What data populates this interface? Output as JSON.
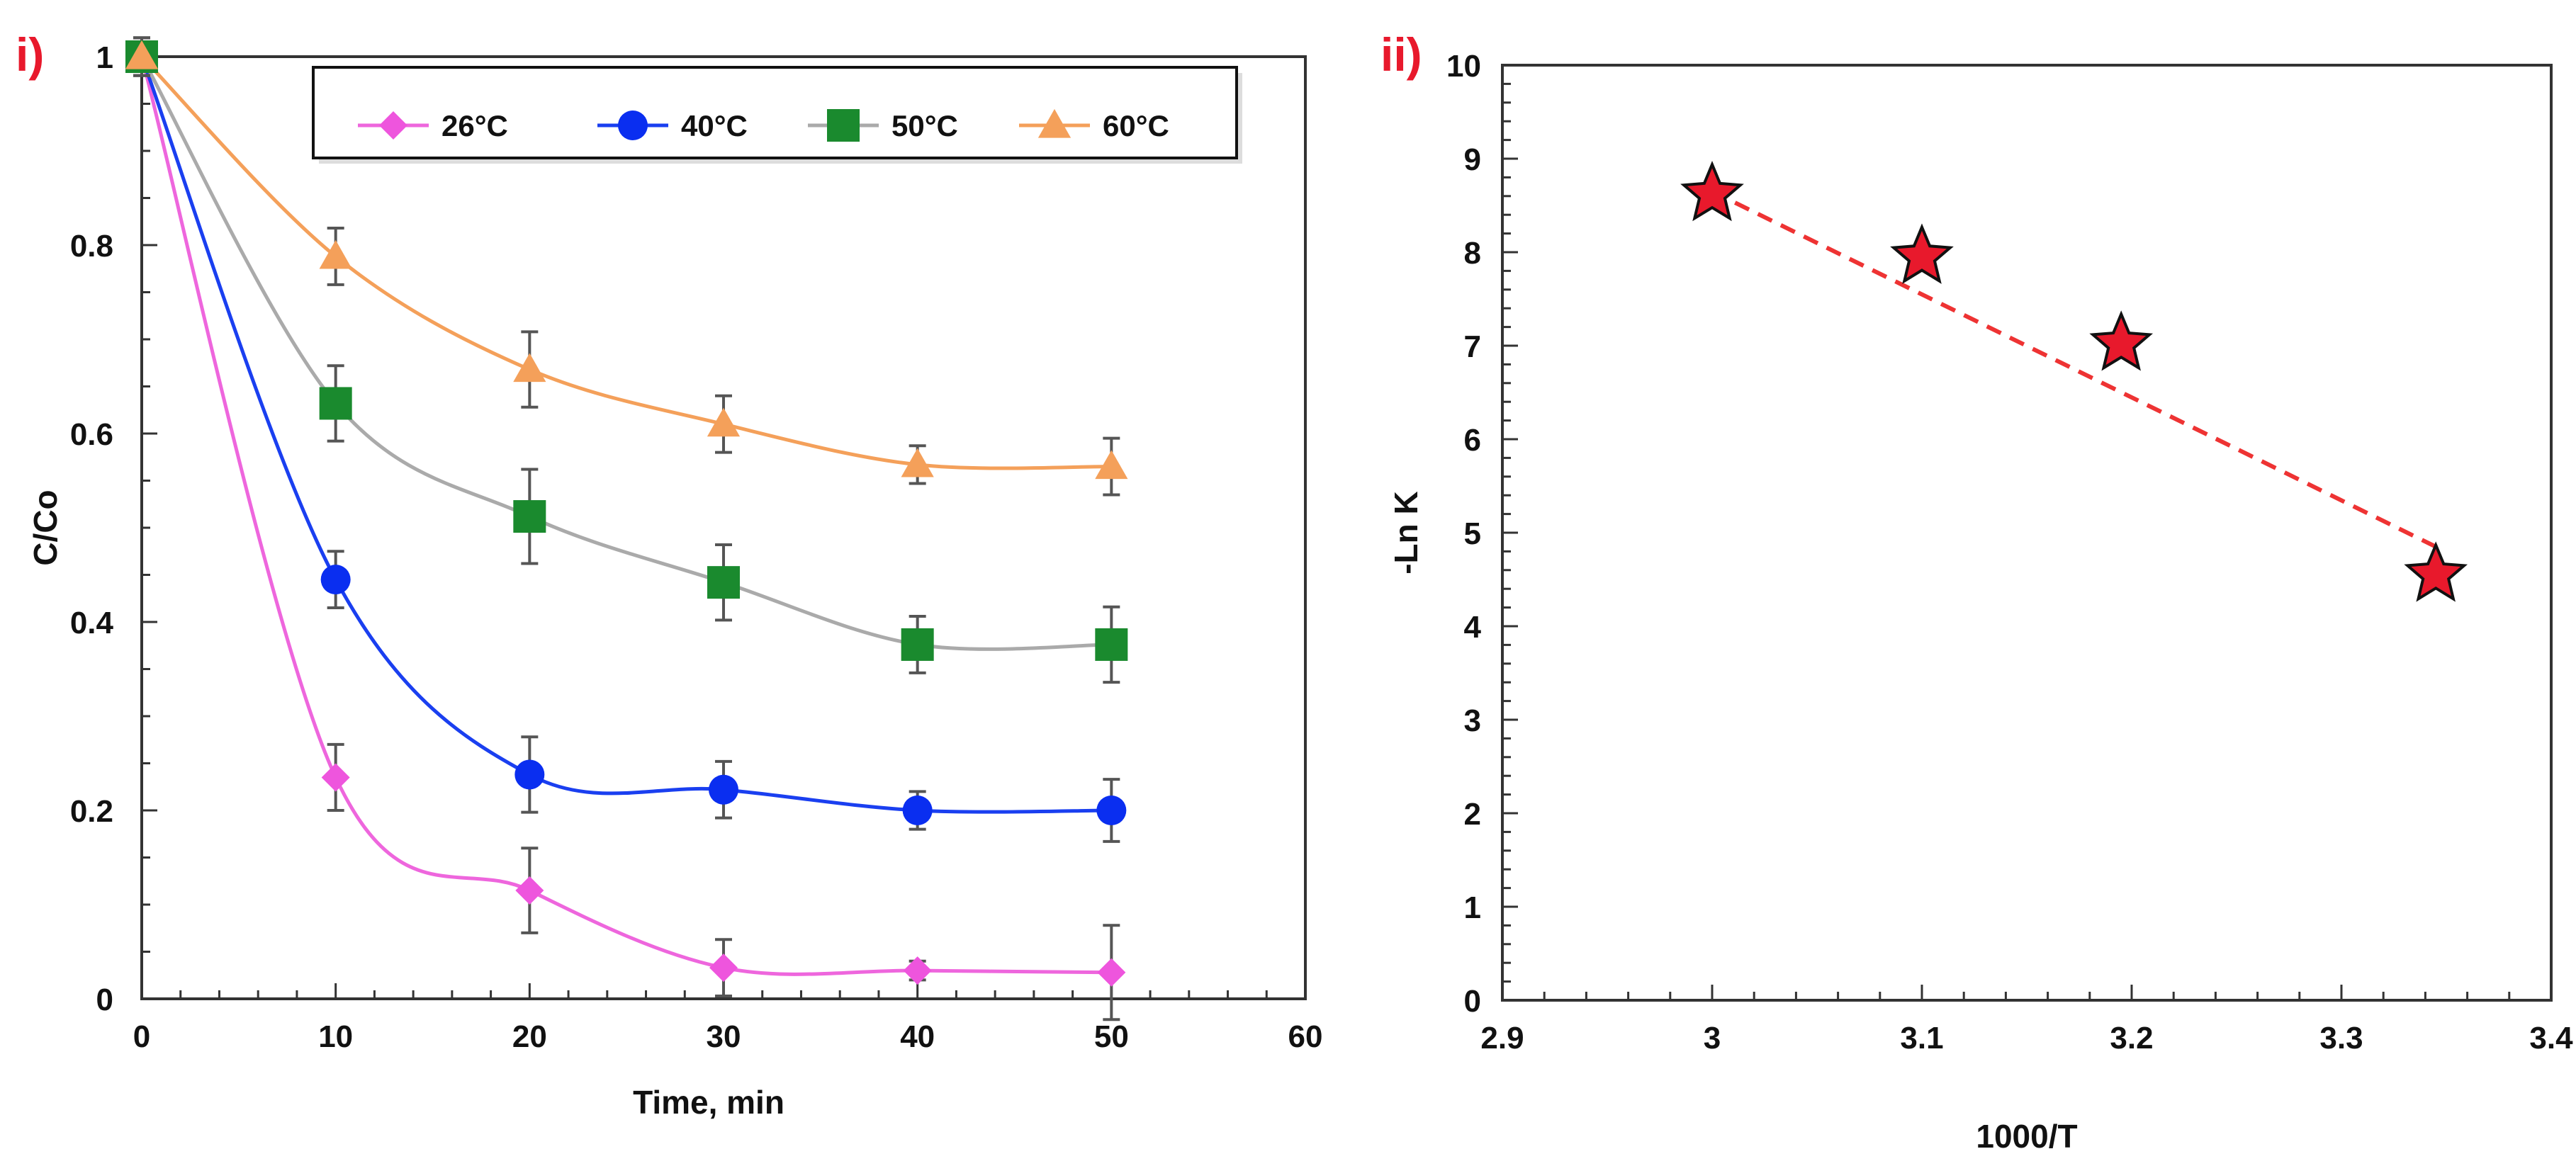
{
  "chart_data": [
    {
      "type": "line",
      "panel_label": "i)",
      "title": "",
      "xlabel": "Time, min",
      "ylabel": "C/Co",
      "xlim": [
        0,
        60
      ],
      "ylim": [
        0,
        1
      ],
      "x_ticks": [
        "0",
        "10",
        "20",
        "30",
        "40",
        "50",
        "60"
      ],
      "y_ticks": [
        "0",
        "0.2",
        "0.4",
        "0.6",
        "0.8",
        "1"
      ],
      "legend_position": "top-right",
      "x": [
        0,
        10,
        20,
        30,
        40,
        50
      ],
      "series": [
        {
          "name": "26°C",
          "marker": "diamond",
          "color": "#ee55dd",
          "values": [
            1.0,
            0.235,
            0.115,
            0.033,
            0.03,
            0.028
          ],
          "errors": [
            0.02,
            0.035,
            0.045,
            0.03,
            0.01,
            0.05
          ]
        },
        {
          "name": "40°C",
          "marker": "circle",
          "color": "#0a2ef0",
          "values": [
            1.0,
            0.445,
            0.238,
            0.222,
            0.2,
            0.2
          ],
          "errors": [
            0.02,
            0.03,
            0.04,
            0.03,
            0.02,
            0.033
          ]
        },
        {
          "name": "50°C",
          "marker": "square",
          "color": "#1a8a2e",
          "values": [
            1.0,
            0.632,
            0.512,
            0.442,
            0.376,
            0.376
          ],
          "errors": [
            0.02,
            0.04,
            0.05,
            0.04,
            0.03,
            0.04
          ]
        },
        {
          "name": "60°C",
          "marker": "triangle",
          "color": "#f4a05a",
          "values": [
            1.0,
            0.788,
            0.668,
            0.61,
            0.567,
            0.565
          ],
          "errors": [
            0.02,
            0.03,
            0.04,
            0.03,
            0.02,
            0.03
          ]
        }
      ],
      "line_colors": {
        "26°C": "#ee66dd",
        "40°C": "#1a3ff0",
        "50°C": "#aaaaaa",
        "60°C": "#f4a05a"
      }
    },
    {
      "type": "scatter",
      "panel_label": "ii)",
      "title": "",
      "xlabel": "1000/T",
      "ylabel": "-Ln K",
      "xlim": [
        2.9,
        3.4
      ],
      "ylim": [
        0,
        10
      ],
      "x_ticks": [
        "2.9",
        "3",
        "3.1",
        "3.2",
        "3.3",
        "3.4"
      ],
      "y_ticks": [
        "0",
        "1",
        "2",
        "3",
        "4",
        "5",
        "6",
        "7",
        "8",
        "9",
        "10"
      ],
      "series": [
        {
          "name": "-Ln K",
          "marker": "star",
          "color": "#e8192c",
          "x": [
            3.0,
            3.1,
            3.195,
            3.345
          ],
          "values": [
            8.62,
            7.95,
            7.02,
            4.55
          ]
        }
      ],
      "trendline": {
        "style": "dashed",
        "color": "#ee3333",
        "x": [
          3.0,
          3.345
        ],
        "values": [
          8.65,
          4.85
        ]
      }
    }
  ]
}
